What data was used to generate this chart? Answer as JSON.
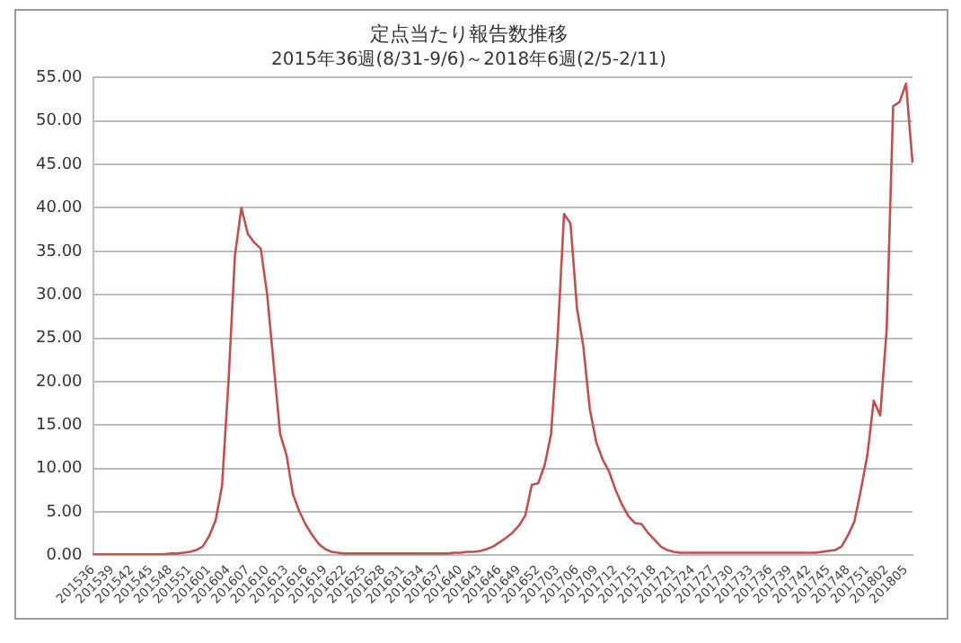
{
  "chart_data": {
    "type": "line",
    "title": "定点当たり報告数推移",
    "subtitle": "2015年36週(8/31-9/6)～2018年6週(2/5-2/11)",
    "categories": [
      "201536",
      null,
      null,
      "201539",
      null,
      null,
      "201542",
      null,
      null,
      "201545",
      null,
      null,
      "201548",
      null,
      null,
      "201551",
      null,
      null,
      "201601",
      null,
      null,
      "201604",
      null,
      null,
      "201607",
      null,
      null,
      "201610",
      null,
      null,
      "201613",
      null,
      null,
      "201616",
      null,
      null,
      "201619",
      null,
      null,
      "201622",
      null,
      null,
      "201625",
      null,
      null,
      "201628",
      null,
      null,
      "201631",
      null,
      null,
      "201634",
      null,
      null,
      "201637",
      null,
      null,
      "201640",
      null,
      null,
      "201643",
      null,
      null,
      "201646",
      null,
      null,
      "201649",
      null,
      null,
      "201652",
      null,
      null,
      "201703",
      null,
      null,
      "201706",
      null,
      null,
      "201709",
      null,
      null,
      "201712",
      null,
      null,
      "201715",
      null,
      null,
      "201718",
      null,
      null,
      "201721",
      null,
      null,
      "201724",
      null,
      null,
      "201727",
      null,
      null,
      "201730",
      null,
      null,
      "201733",
      null,
      null,
      "201736",
      null,
      null,
      "201739",
      null,
      null,
      "201742",
      null,
      null,
      "201745",
      null,
      null,
      "201748",
      null,
      null,
      "201751",
      null,
      null,
      "201802",
      null,
      null,
      "201805",
      null
    ],
    "series": [
      {
        "color": "#c0504d",
        "values": [
          0.1,
          0.1,
          0.1,
          0.1,
          0.1,
          0.1,
          0.1,
          0.1,
          0.1,
          0.1,
          0.1,
          0.1,
          0.2,
          0.2,
          0.3,
          0.4,
          0.6,
          1.0,
          2.2,
          4.0,
          8.0,
          20.0,
          34.5,
          40.0,
          37.0,
          36.0,
          35.3,
          30.0,
          22.0,
          14.0,
          11.5,
          7.0,
          5.0,
          3.5,
          2.3,
          1.3,
          0.7,
          0.4,
          0.3,
          0.2,
          0.2,
          0.2,
          0.2,
          0.2,
          0.2,
          0.2,
          0.2,
          0.2,
          0.2,
          0.2,
          0.2,
          0.2,
          0.2,
          0.2,
          0.2,
          0.2,
          0.3,
          0.3,
          0.4,
          0.4,
          0.5,
          0.7,
          1.0,
          1.5,
          2.0,
          2.6,
          3.4,
          4.6,
          8.1,
          8.3,
          10.4,
          14.0,
          25.0,
          39.3,
          38.2,
          28.5,
          24.0,
          16.8,
          13.0,
          11.0,
          9.6,
          7.5,
          5.8,
          4.5,
          3.7,
          3.6,
          2.6,
          1.8,
          1.0,
          0.6,
          0.4,
          0.3,
          0.3,
          0.3,
          0.3,
          0.3,
          0.3,
          0.3,
          0.3,
          0.3,
          0.3,
          0.3,
          0.3,
          0.3,
          0.3,
          0.3,
          0.3,
          0.3,
          0.3,
          0.3,
          0.3,
          0.3,
          0.3,
          0.4,
          0.5,
          0.6,
          1.0,
          2.3,
          3.9,
          7.5,
          11.5,
          17.8,
          16.1,
          26.0,
          51.7,
          52.2,
          54.3,
          45.2
        ]
      }
    ],
    "ylim": [
      0,
      55
    ],
    "yticks": [
      {
        "value": 0,
        "label": "0.00"
      },
      {
        "value": 5,
        "label": "5.00"
      },
      {
        "value": 10,
        "label": "10.00"
      },
      {
        "value": 15,
        "label": "15.00"
      },
      {
        "value": 20,
        "label": "20.00"
      },
      {
        "value": 25,
        "label": "25.00"
      },
      {
        "value": 30,
        "label": "30.00"
      },
      {
        "value": 35,
        "label": "35.00"
      },
      {
        "value": 40,
        "label": "40.00"
      },
      {
        "value": 45,
        "label": "45.00"
      },
      {
        "value": 50,
        "label": "50.00"
      },
      {
        "value": 55,
        "label": "55.00"
      }
    ],
    "grid": "y",
    "legend": false,
    "marker": "none",
    "line_style": "solid"
  }
}
